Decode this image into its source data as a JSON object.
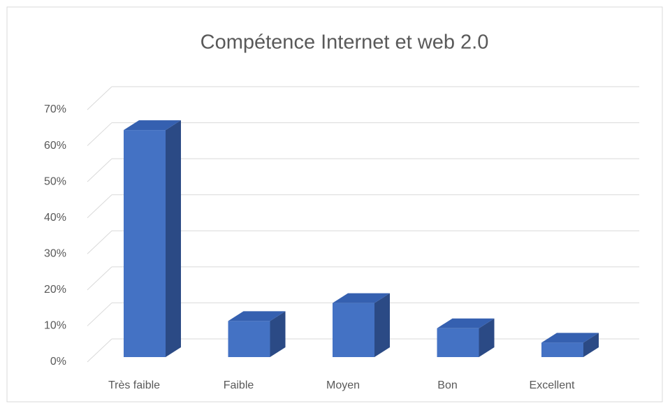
{
  "chart_data": {
    "type": "bar3d",
    "title": "Compétence Internet et web 2.0",
    "categories": [
      "Très faible",
      "Faible",
      "Moyen",
      "Bon",
      "Excellent"
    ],
    "values": [
      63,
      10,
      15,
      8,
      4
    ],
    "color": "#4472c4",
    "ylim": [
      0,
      70
    ],
    "yticks": [
      {
        "value": 0,
        "label": "0%"
      },
      {
        "value": 10,
        "label": "10%"
      },
      {
        "value": 20,
        "label": "20%"
      },
      {
        "value": 30,
        "label": "30%"
      },
      {
        "value": 40,
        "label": "40%"
      },
      {
        "value": 50,
        "label": "50%"
      },
      {
        "value": 60,
        "label": "60%"
      },
      {
        "value": 70,
        "label": "70%"
      }
    ],
    "grid": true
  }
}
